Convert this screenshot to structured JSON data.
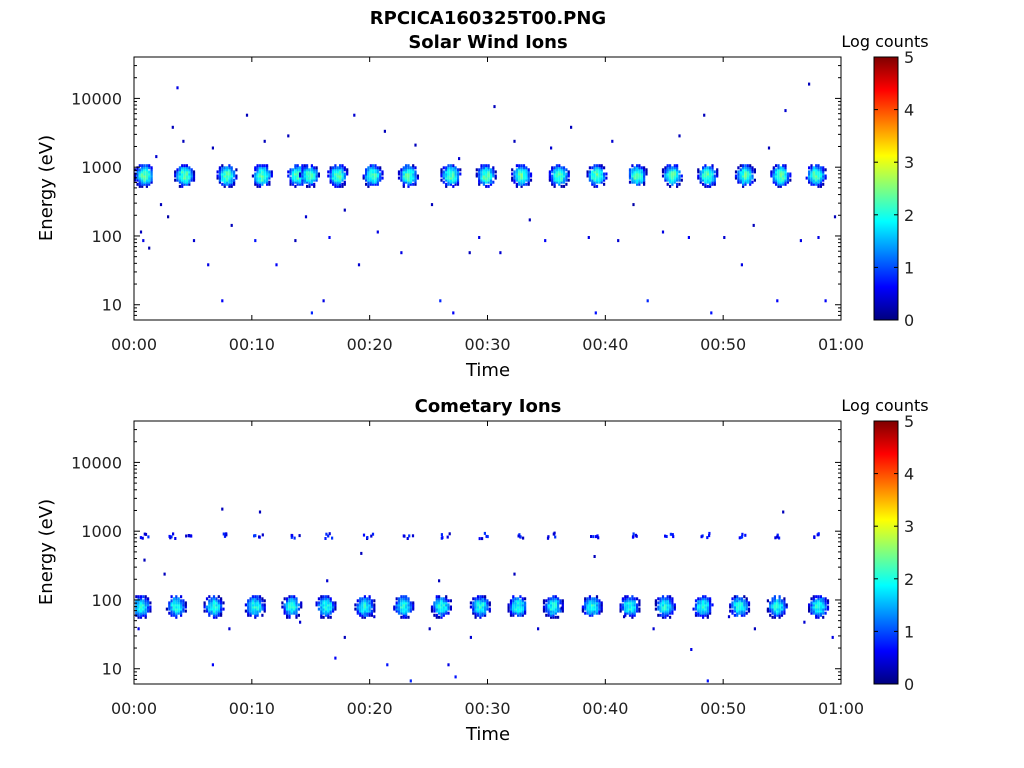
{
  "figure": {
    "title": "RPCICA160325T00.PNG"
  },
  "colorscale": {
    "stops": [
      "#00007f",
      "#0000ff",
      "#007fff",
      "#00ffff",
      "#7fff7f",
      "#ffff00",
      "#ff7f00",
      "#ff0000",
      "#7f0000"
    ]
  },
  "chart_data": [
    {
      "type": "heatmap",
      "title": "Solar Wind Ions",
      "xlabel": "Time",
      "ylabel": "Energy (eV)",
      "y_scale": "log",
      "ylim": [
        6,
        40000
      ],
      "xlim": [
        "00:00",
        "01:00"
      ],
      "x_ticks": [
        "00:00",
        "00:10",
        "00:20",
        "00:30",
        "00:40",
        "00:50",
        "01:00"
      ],
      "y_ticks": [
        10,
        100,
        1000,
        10000
      ],
      "y_tick_labels": [
        "10",
        "100",
        "1000",
        "10000"
      ],
      "colorbar": {
        "label": "Log counts",
        "range": [
          0,
          5
        ],
        "ticks": [
          "0",
          "1",
          "2",
          "3",
          "4",
          "5"
        ]
      },
      "bursts": {
        "center_energy_eV": 800,
        "peak_log_counts": 2.3,
        "times_min": [
          0.8,
          4.2,
          7.8,
          10.8,
          13.8,
          14.8,
          17.2,
          20.2,
          23.2,
          26.8,
          29.8,
          32.8,
          36.0,
          39.2,
          42.6,
          45.6,
          48.6,
          51.8,
          54.8,
          57.8
        ]
      },
      "sparse_points": [
        [
          0.5,
          120,
          0.3
        ],
        [
          0.7,
          90,
          0.5
        ],
        [
          1.2,
          70,
          0.2
        ],
        [
          1.8,
          1500,
          0.4
        ],
        [
          2.2,
          300,
          0.3
        ],
        [
          2.8,
          200,
          0.2
        ],
        [
          3.2,
          4000,
          0.3
        ],
        [
          3.6,
          15000,
          0.5
        ],
        [
          4.1,
          2500,
          0.3
        ],
        [
          5.0,
          90,
          0.4
        ],
        [
          6.2,
          40,
          0.5
        ],
        [
          6.6,
          2000,
          0.3
        ],
        [
          7.4,
          12,
          0.6
        ],
        [
          8.2,
          150,
          0.3
        ],
        [
          9.5,
          6000,
          0.3
        ],
        [
          10.2,
          90,
          0.7
        ],
        [
          11.0,
          2500,
          0.3
        ],
        [
          12.0,
          40,
          0.6
        ],
        [
          13.0,
          3000,
          0.3
        ],
        [
          13.6,
          90,
          0.3
        ],
        [
          14.5,
          200,
          0.4
        ],
        [
          15.0,
          8,
          0.8
        ],
        [
          16.0,
          12,
          0.5
        ],
        [
          16.5,
          100,
          0.6
        ],
        [
          17.8,
          250,
          0.3
        ],
        [
          18.6,
          6000,
          0.4
        ],
        [
          19.0,
          40,
          0.4
        ],
        [
          20.6,
          120,
          0.5
        ],
        [
          21.2,
          3500,
          0.3
        ],
        [
          22.6,
          60,
          0.5
        ],
        [
          23.8,
          2200,
          0.3
        ],
        [
          25.2,
          300,
          0.3
        ],
        [
          25.9,
          12,
          0.8
        ],
        [
          27.0,
          8,
          0.6
        ],
        [
          27.5,
          1400,
          0.4
        ],
        [
          28.4,
          60,
          0.3
        ],
        [
          29.2,
          100,
          0.5
        ],
        [
          30.5,
          8000,
          0.3
        ],
        [
          31.0,
          60,
          0.4
        ],
        [
          32.2,
          2500,
          0.3
        ],
        [
          33.5,
          180,
          0.3
        ],
        [
          34.8,
          90,
          0.6
        ],
        [
          35.3,
          2000,
          0.4
        ],
        [
          37.0,
          4000,
          0.3
        ],
        [
          38.5,
          100,
          0.5
        ],
        [
          39.1,
          8,
          0.7
        ],
        [
          40.5,
          2500,
          0.4
        ],
        [
          41.0,
          90,
          0.4
        ],
        [
          42.3,
          300,
          0.2
        ],
        [
          43.5,
          12,
          0.8
        ],
        [
          44.8,
          120,
          0.5
        ],
        [
          46.2,
          3000,
          0.3
        ],
        [
          47.0,
          100,
          0.6
        ],
        [
          48.3,
          6000,
          0.3
        ],
        [
          48.9,
          8,
          0.7
        ],
        [
          50.0,
          100,
          0.4
        ],
        [
          51.5,
          40,
          0.5
        ],
        [
          52.5,
          150,
          0.3
        ],
        [
          53.8,
          2000,
          0.3
        ],
        [
          54.5,
          12,
          0.6
        ],
        [
          55.2,
          7000,
          0.4
        ],
        [
          56.5,
          90,
          0.5
        ],
        [
          57.2,
          17000,
          0.3
        ],
        [
          58.0,
          100,
          0.5
        ],
        [
          58.6,
          12,
          0.6
        ],
        [
          59.4,
          200,
          0.3
        ]
      ]
    },
    {
      "type": "heatmap",
      "title": "Cometary Ions",
      "xlabel": "Time",
      "ylabel": "Energy (eV)",
      "y_scale": "log",
      "ylim": [
        6,
        40000
      ],
      "xlim": [
        "00:00",
        "01:00"
      ],
      "x_ticks": [
        "00:00",
        "00:10",
        "00:20",
        "00:30",
        "00:40",
        "00:50",
        "01:00"
      ],
      "y_ticks": [
        10,
        100,
        1000,
        10000
      ],
      "y_tick_labels": [
        "10",
        "100",
        "1000",
        "10000"
      ],
      "colorbar": {
        "label": "Log counts",
        "range": [
          0,
          5
        ],
        "ticks": [
          "0",
          "1",
          "2",
          "3",
          "4",
          "5"
        ]
      },
      "bursts": {
        "center_energy_eV": 85,
        "peak_log_counts": 2.0,
        "times_min": [
          0.5,
          3.5,
          6.7,
          10.2,
          13.3,
          16.2,
          19.5,
          22.8,
          26.0,
          29.3,
          32.5,
          35.5,
          38.8,
          42.0,
          45.0,
          48.2,
          51.3,
          54.5,
          58.0
        ]
      },
      "upper_marks": {
        "center_energy_eV": 900,
        "times_min": [
          0.8,
          3.2,
          4.5,
          7.8,
          10.5,
          13.6,
          16.4,
          19.8,
          23.2,
          26.4,
          29.6,
          32.8,
          35.4,
          39.0,
          42.5,
          45.3,
          48.4,
          51.6,
          54.6,
          57.8
        ]
      },
      "sparse_points": [
        [
          0.3,
          40,
          0.5
        ],
        [
          0.8,
          400,
          0.3
        ],
        [
          2.5,
          250,
          0.3
        ],
        [
          6.6,
          12,
          0.6
        ],
        [
          7.4,
          2200,
          0.3
        ],
        [
          8.0,
          40,
          0.4
        ],
        [
          10.6,
          2000,
          0.3
        ],
        [
          14.0,
          50,
          0.4
        ],
        [
          16.3,
          200,
          0.4
        ],
        [
          17.0,
          15,
          0.6
        ],
        [
          17.8,
          30,
          0.3
        ],
        [
          19.2,
          500,
          0.3
        ],
        [
          20.3,
          60,
          0.4
        ],
        [
          21.4,
          12,
          0.7
        ],
        [
          23.4,
          7,
          0.8
        ],
        [
          25.0,
          40,
          0.3
        ],
        [
          25.8,
          200,
          0.3
        ],
        [
          26.6,
          12,
          0.5
        ],
        [
          27.2,
          8,
          0.7
        ],
        [
          28.5,
          30,
          0.4
        ],
        [
          32.2,
          250,
          0.3
        ],
        [
          34.2,
          40,
          0.4
        ],
        [
          36.2,
          80,
          0.3
        ],
        [
          39.0,
          450,
          0.3
        ],
        [
          41.5,
          60,
          0.3
        ],
        [
          44.0,
          40,
          0.4
        ],
        [
          47.2,
          20,
          0.5
        ],
        [
          48.6,
          7,
          0.7
        ],
        [
          50.4,
          60,
          0.4
        ],
        [
          52.6,
          40,
          0.3
        ],
        [
          55.0,
          2000,
          0.3
        ],
        [
          56.8,
          50,
          0.4
        ],
        [
          59.2,
          30,
          0.5
        ]
      ]
    }
  ]
}
